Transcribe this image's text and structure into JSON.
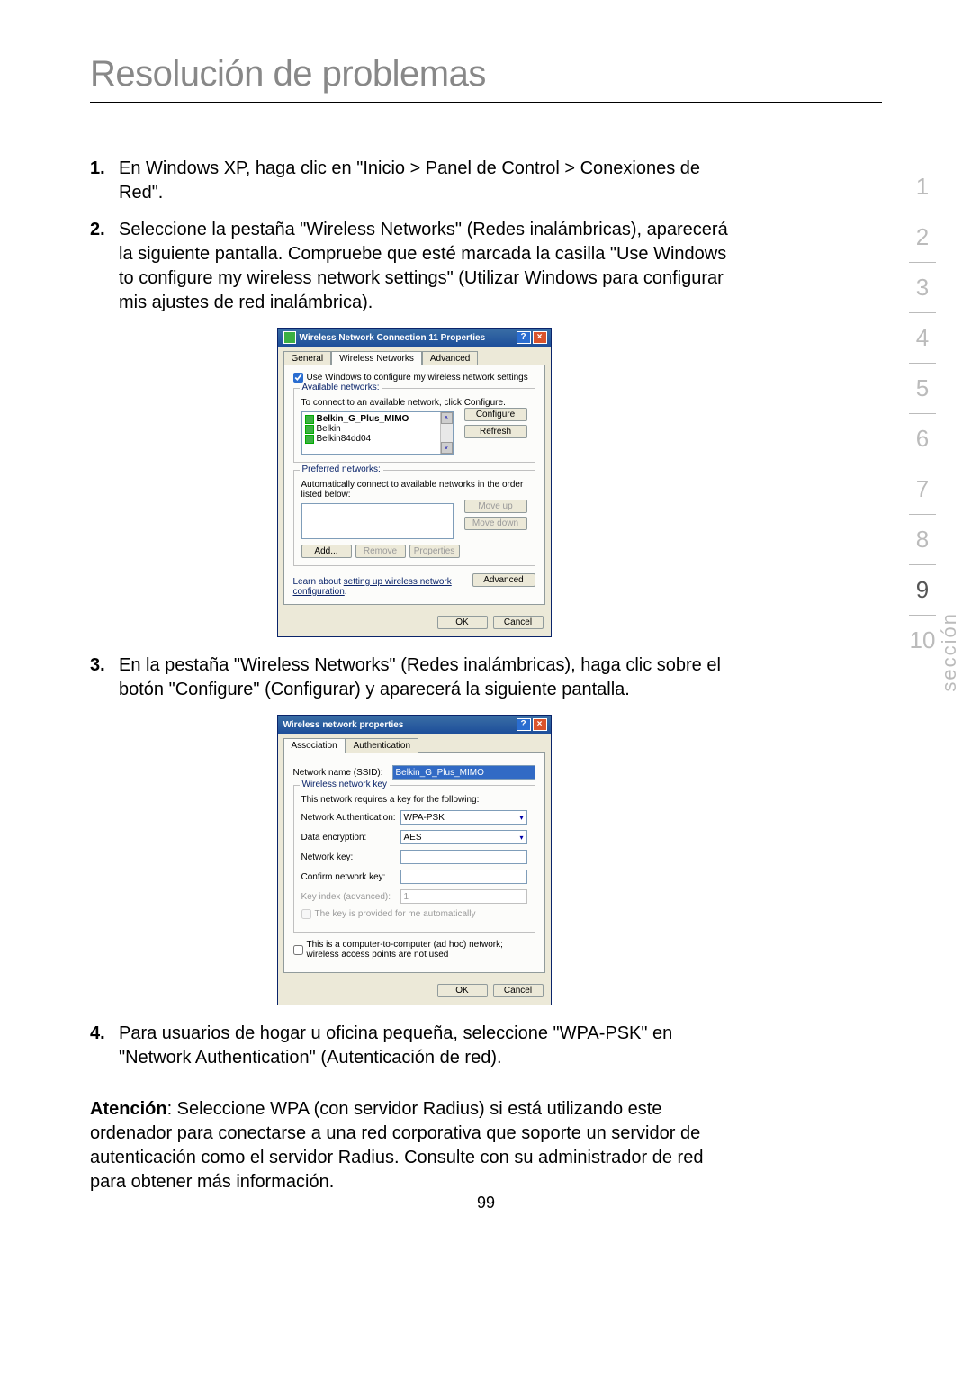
{
  "page": {
    "title": "Resolución de problemas",
    "number": "99"
  },
  "sectionLabel": "sección",
  "sectionNumbers": [
    "1",
    "2",
    "3",
    "4",
    "5",
    "6",
    "7",
    "8",
    "9",
    "10"
  ],
  "activeSection": "9",
  "steps": {
    "s1": "En Windows XP, haga clic en \"Inicio > Panel de Control > Conexiones de Red\".",
    "s2": "Seleccione la pestaña \"Wireless Networks\" (Redes inalámbricas), aparecerá la siguiente pantalla. Compruebe que esté marcada la casilla \"Use Windows to configure my wireless network settings\" (Utilizar Windows para configurar mis ajustes de red inalámbrica).",
    "s3": "En la pestaña \"Wireless Networks\" (Redes inalámbricas), haga clic sobre el botón \"Configure\" (Configurar) y aparecerá la siguiente pantalla.",
    "s4": "Para usuarios de hogar u oficina pequeña, seleccione \"WPA-PSK\" en \"Network Authentication\" (Autenticación de red)."
  },
  "attention": {
    "label": "Atención",
    "text": ": Seleccione WPA (con servidor Radius) si está utilizando este ordenador para conectarse a una red corporativa que soporte un servidor de autenticación como el servidor Radius. Consulte con su administrador de red para obtener más información."
  },
  "dlg1": {
    "title": "Wireless Network Connection 11 Properties",
    "help": "?",
    "close": "×",
    "tabs": {
      "general": "General",
      "wireless": "Wireless Networks",
      "advanced": "Advanced"
    },
    "useWindows": "Use Windows to configure my wireless network settings",
    "avail": {
      "legend": "Available networks:",
      "hint": "To connect to an available network, click Configure.",
      "items": [
        "Belkin_G_Plus_MIMO",
        "Belkin",
        "Belkin84dd04"
      ],
      "scrollUp": "˄",
      "scrollDown": "˅",
      "configure": "Configure",
      "refresh": "Refresh"
    },
    "pref": {
      "legend": "Preferred networks:",
      "hint": "Automatically connect to available networks in the order listed below:",
      "moveUp": "Move up",
      "moveDown": "Move down",
      "add": "Add...",
      "remove": "Remove",
      "properties": "Properties"
    },
    "learn1": "Learn about ",
    "learnLink": "setting up wireless network configuration",
    "learn2": ".",
    "advancedBtn": "Advanced",
    "ok": "OK",
    "cancel": "Cancel"
  },
  "dlg2": {
    "title": "Wireless network properties",
    "help": "?",
    "close": "×",
    "tabs": {
      "assoc": "Association",
      "auth": "Authentication"
    },
    "ssidLabel": "Network name (SSID):",
    "ssidValue": "Belkin_G_Plus_MIMO",
    "keyGroup": "Wireless network key",
    "keyHint": "This network requires a key for the following:",
    "authLabel": "Network Authentication:",
    "authValue": "WPA-PSK",
    "encLabel": "Data encryption:",
    "encValue": "AES",
    "netKeyLabel": "Network key:",
    "confirmLabel": "Confirm network key:",
    "keyIndexLabel": "Key index (advanced):",
    "keyIndexValue": "1",
    "autoKey": "The key is provided for me automatically",
    "adhoc": "This is a computer-to-computer (ad hoc) network; wireless access points are not used",
    "ok": "OK",
    "cancel": "Cancel"
  },
  "colors": {
    "titleGray": "#888888",
    "navGray": "#bbbbbb",
    "navActive": "#555555",
    "winBlue": "#1d4e9a",
    "panelBg": "#ece9d8"
  }
}
